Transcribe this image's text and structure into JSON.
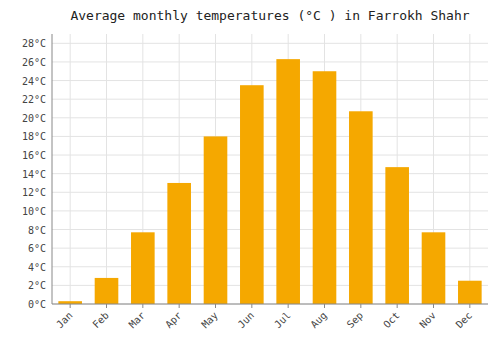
{
  "chart_data": {
    "type": "bar",
    "title": "Average monthly temperatures (°C ) in Farrokh Shahr",
    "categories": [
      "Jan",
      "Feb",
      "Mar",
      "Apr",
      "May",
      "Jun",
      "Jul",
      "Aug",
      "Sep",
      "Oct",
      "Nov",
      "Dec"
    ],
    "values": [
      0.3,
      2.8,
      7.7,
      13.0,
      18.0,
      23.5,
      26.3,
      25.0,
      20.7,
      14.7,
      7.7,
      2.5
    ],
    "color": "#F5A800",
    "ylim": [
      0,
      29
    ],
    "yticks": [
      {
        "value": 0,
        "label": "0°C"
      },
      {
        "value": 2,
        "label": "2°C"
      },
      {
        "value": 4,
        "label": "4°C"
      },
      {
        "value": 6,
        "label": "6°C"
      },
      {
        "value": 8,
        "label": "8°C"
      },
      {
        "value": 10,
        "label": "10°C"
      },
      {
        "value": 12,
        "label": "12°C"
      },
      {
        "value": 14,
        "label": "14°C"
      },
      {
        "value": 16,
        "label": "16°C"
      },
      {
        "value": 18,
        "label": "18°C"
      },
      {
        "value": 20,
        "label": "20°C"
      },
      {
        "value": 22,
        "label": "22°C"
      },
      {
        "value": 24,
        "label": "24°C"
      },
      {
        "value": 26,
        "label": "26°C"
      },
      {
        "value": 28,
        "label": "28°C"
      }
    ],
    "grid": true
  }
}
